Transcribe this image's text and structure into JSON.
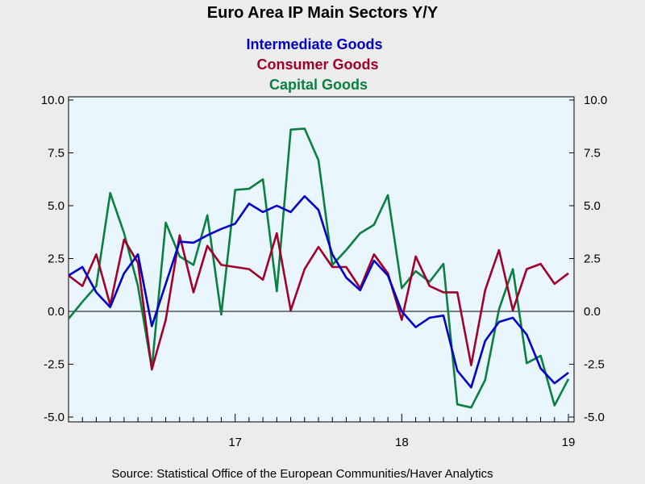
{
  "chart_data": {
    "type": "line",
    "title": "Euro Area IP Main Sectors Y/Y",
    "source": "Source:  Statistical Office of the European Communities/Haver Analytics",
    "ylim": [
      -5.0,
      10.0
    ],
    "yticks": [
      "10.0",
      "7.5",
      "5.0",
      "2.5",
      "0.0",
      "-2.5",
      "-5.0"
    ],
    "ytick_values": [
      10.0,
      7.5,
      5.0,
      2.5,
      0.0,
      -2.5,
      -5.0
    ],
    "xticks": [
      {
        "label": "17",
        "index": 12
      },
      {
        "label": "18",
        "index": 24
      },
      {
        "label": "19",
        "index": 36
      }
    ],
    "x_start": "Jan 2016",
    "grid": false,
    "zero_line": true,
    "legend_placement": "top-center",
    "background": "#eaf6fd",
    "series": [
      {
        "name": "Intermediate Goods",
        "color": "#0000c8",
        "values": [
          1.7,
          2.1,
          0.9,
          0.2,
          1.8,
          2.7,
          -0.7,
          1.3,
          3.3,
          3.25,
          3.6,
          3.9,
          4.15,
          5.1,
          4.7,
          5.0,
          4.7,
          5.45,
          4.8,
          2.7,
          1.6,
          1.0,
          2.4,
          1.7,
          0.0,
          -0.75,
          -0.3,
          -0.2,
          -2.8,
          -3.6,
          -1.4,
          -0.5,
          -0.3,
          -1.1,
          -2.7,
          -3.4,
          -2.9
        ]
      },
      {
        "name": "Consumer Goods",
        "color": "#a0002a",
        "values": [
          1.7,
          1.2,
          2.7,
          0.3,
          3.4,
          2.3,
          -2.75,
          -0.4,
          3.6,
          0.9,
          3.1,
          2.2,
          2.1,
          2.0,
          1.5,
          3.7,
          0.05,
          2.0,
          3.05,
          2.1,
          2.1,
          1.1,
          2.7,
          1.8,
          -0.4,
          2.6,
          1.2,
          0.9,
          0.9,
          -2.55,
          1.0,
          2.9,
          0.05,
          2.0,
          2.25,
          1.3,
          1.8
        ]
      },
      {
        "name": "Capital Goods",
        "color": "#0a8040",
        "values": [
          -0.35,
          0.45,
          1.2,
          5.6,
          3.7,
          1.2,
          -2.7,
          4.2,
          2.6,
          2.2,
          4.55,
          -0.15,
          5.75,
          5.8,
          6.25,
          0.95,
          8.6,
          8.65,
          7.15,
          2.2,
          2.9,
          3.7,
          4.1,
          5.5,
          1.1,
          1.9,
          1.4,
          2.25,
          -4.4,
          -4.55,
          -3.25,
          0.1,
          2.0,
          -2.45,
          -2.1,
          -4.45,
          -3.2
        ]
      }
    ]
  }
}
